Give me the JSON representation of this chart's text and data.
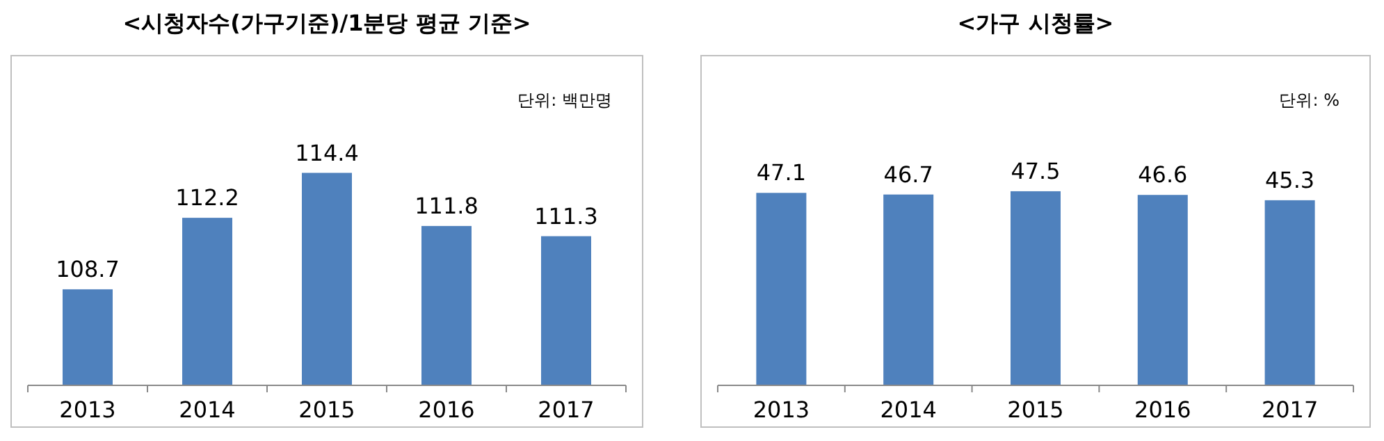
{
  "chart_data": [
    {
      "type": "bar",
      "title": "<시청자수(가구기준)/1분당 평균 기준>",
      "categories": [
        "2013",
        "2014",
        "2015",
        "2016",
        "2017"
      ],
      "values": [
        108.7,
        112.2,
        114.4,
        111.8,
        111.3
      ],
      "color": "#4f81bd",
      "ylim": [
        104,
        120
      ],
      "data_labels": true,
      "annotations": [
        "단위: 백만명"
      ]
    },
    {
      "type": "bar",
      "title": "<가구 시청률>",
      "categories": [
        "2013",
        "2014",
        "2015",
        "2016",
        "2017"
      ],
      "values": [
        47.1,
        46.7,
        47.5,
        46.6,
        45.3
      ],
      "color": "#4f81bd",
      "ylim": [
        0,
        80
      ],
      "data_labels": true,
      "annotations": [
        "단위: %"
      ]
    }
  ]
}
